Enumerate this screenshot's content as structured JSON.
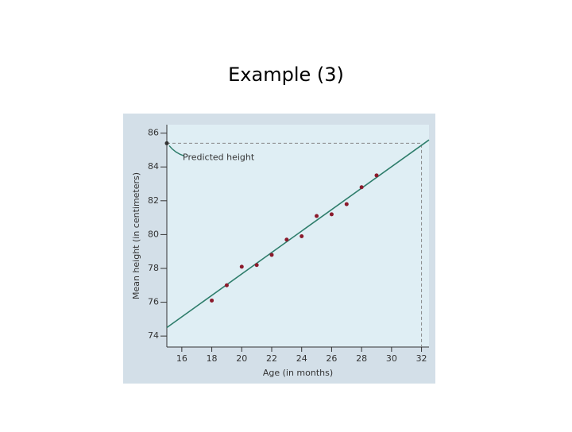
{
  "title": "Example (3)",
  "chart_data": {
    "type": "scatter",
    "x_label": "Age (in months)",
    "y_label": "Mean height (in centimeters)",
    "annotation": "Predicted height",
    "x": [
      18,
      19,
      20,
      21,
      22,
      23,
      24,
      25,
      26,
      27,
      28,
      29
    ],
    "values": [
      76.1,
      77.0,
      78.1,
      78.2,
      78.8,
      79.7,
      79.9,
      81.1,
      81.2,
      81.8,
      82.8,
      83.5
    ],
    "color": "#8b1a2b",
    "fit_line": {
      "x": [
        15,
        32.5
      ],
      "y": [
        74.5,
        85.6
      ],
      "color": "#2e7d6b"
    },
    "predicted": {
      "x": 32,
      "y": 85.4
    },
    "xlim": [
      15,
      32.5
    ],
    "ylim": [
      73.35,
      86.5
    ],
    "xticks": [
      16,
      18,
      20,
      22,
      24,
      26,
      28,
      30,
      32
    ],
    "yticks": [
      74,
      76,
      78,
      80,
      82,
      84,
      86
    ]
  }
}
